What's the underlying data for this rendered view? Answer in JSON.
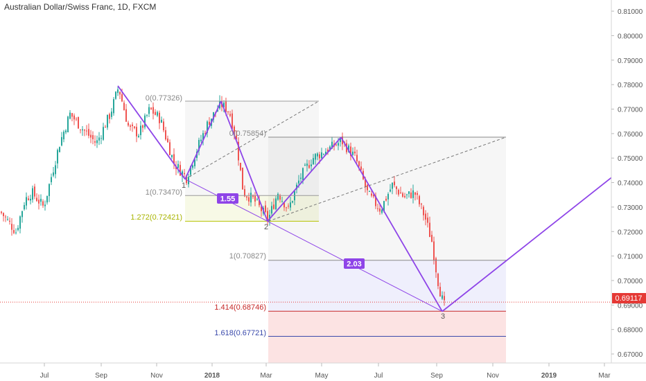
{
  "chart_data": {
    "type": "candlestick",
    "title": "Australian Dollar/Swiss Franc, 1D, FXCM",
    "ylim": [
      0.6625,
      0.8125
    ],
    "y_ticks": [
      "0.67000",
      "0.68000",
      "0.69000",
      "0.70000",
      "0.71000",
      "0.72000",
      "0.73000",
      "0.74000",
      "0.75000",
      "0.76000",
      "0.77000",
      "0.78000",
      "0.79000",
      "0.80000",
      "0.81000"
    ],
    "x_ticks": [
      "Jul",
      "Sep",
      "Nov",
      "2018",
      "Mar",
      "May",
      "Jul",
      "Sep",
      "Nov",
      "2019",
      "Mar"
    ],
    "last_price": "0.69117",
    "last_price_value": 0.69117,
    "colors": {
      "up": "#26a69a",
      "down": "#ef5350",
      "pattern": "#8e44e8",
      "last_price": "#e53935"
    },
    "pattern_points": [
      {
        "t": 0.0,
        "price": 0.7795
      },
      {
        "t": 1.0,
        "price": 0.7414,
        "label": "1"
      },
      {
        "t": 1.6,
        "price": 0.7732
      },
      {
        "t": 2.3,
        "price": 0.7242,
        "label": "2"
      },
      {
        "t": 3.3,
        "price": 0.7585
      },
      {
        "t": 4.64,
        "price": 0.6874,
        "label": "3"
      },
      {
        "t": 7.0,
        "price": 0.742
      }
    ],
    "ratio_badges": [
      {
        "label": "1.55",
        "t": 1.7,
        "price": 0.7328
      },
      {
        "label": "2.03",
        "t": 3.8,
        "price": 0.7056
      }
    ],
    "fib_levels": [
      {
        "label": "0(0.77326)",
        "price": 0.77326
      },
      {
        "label": "1(0.73470)",
        "price": 0.7347
      },
      {
        "label": "1.272(0.72421)",
        "price": 0.72421
      },
      {
        "label": "0(0.75854)",
        "price": 0.75854
      },
      {
        "label": "1(0.70827)",
        "price": 0.70827
      },
      {
        "label": "1.414(0.68746)",
        "price": 0.68746
      },
      {
        "label": "1.618(0.67721)",
        "price": 0.67721
      }
    ],
    "grid": false
  }
}
